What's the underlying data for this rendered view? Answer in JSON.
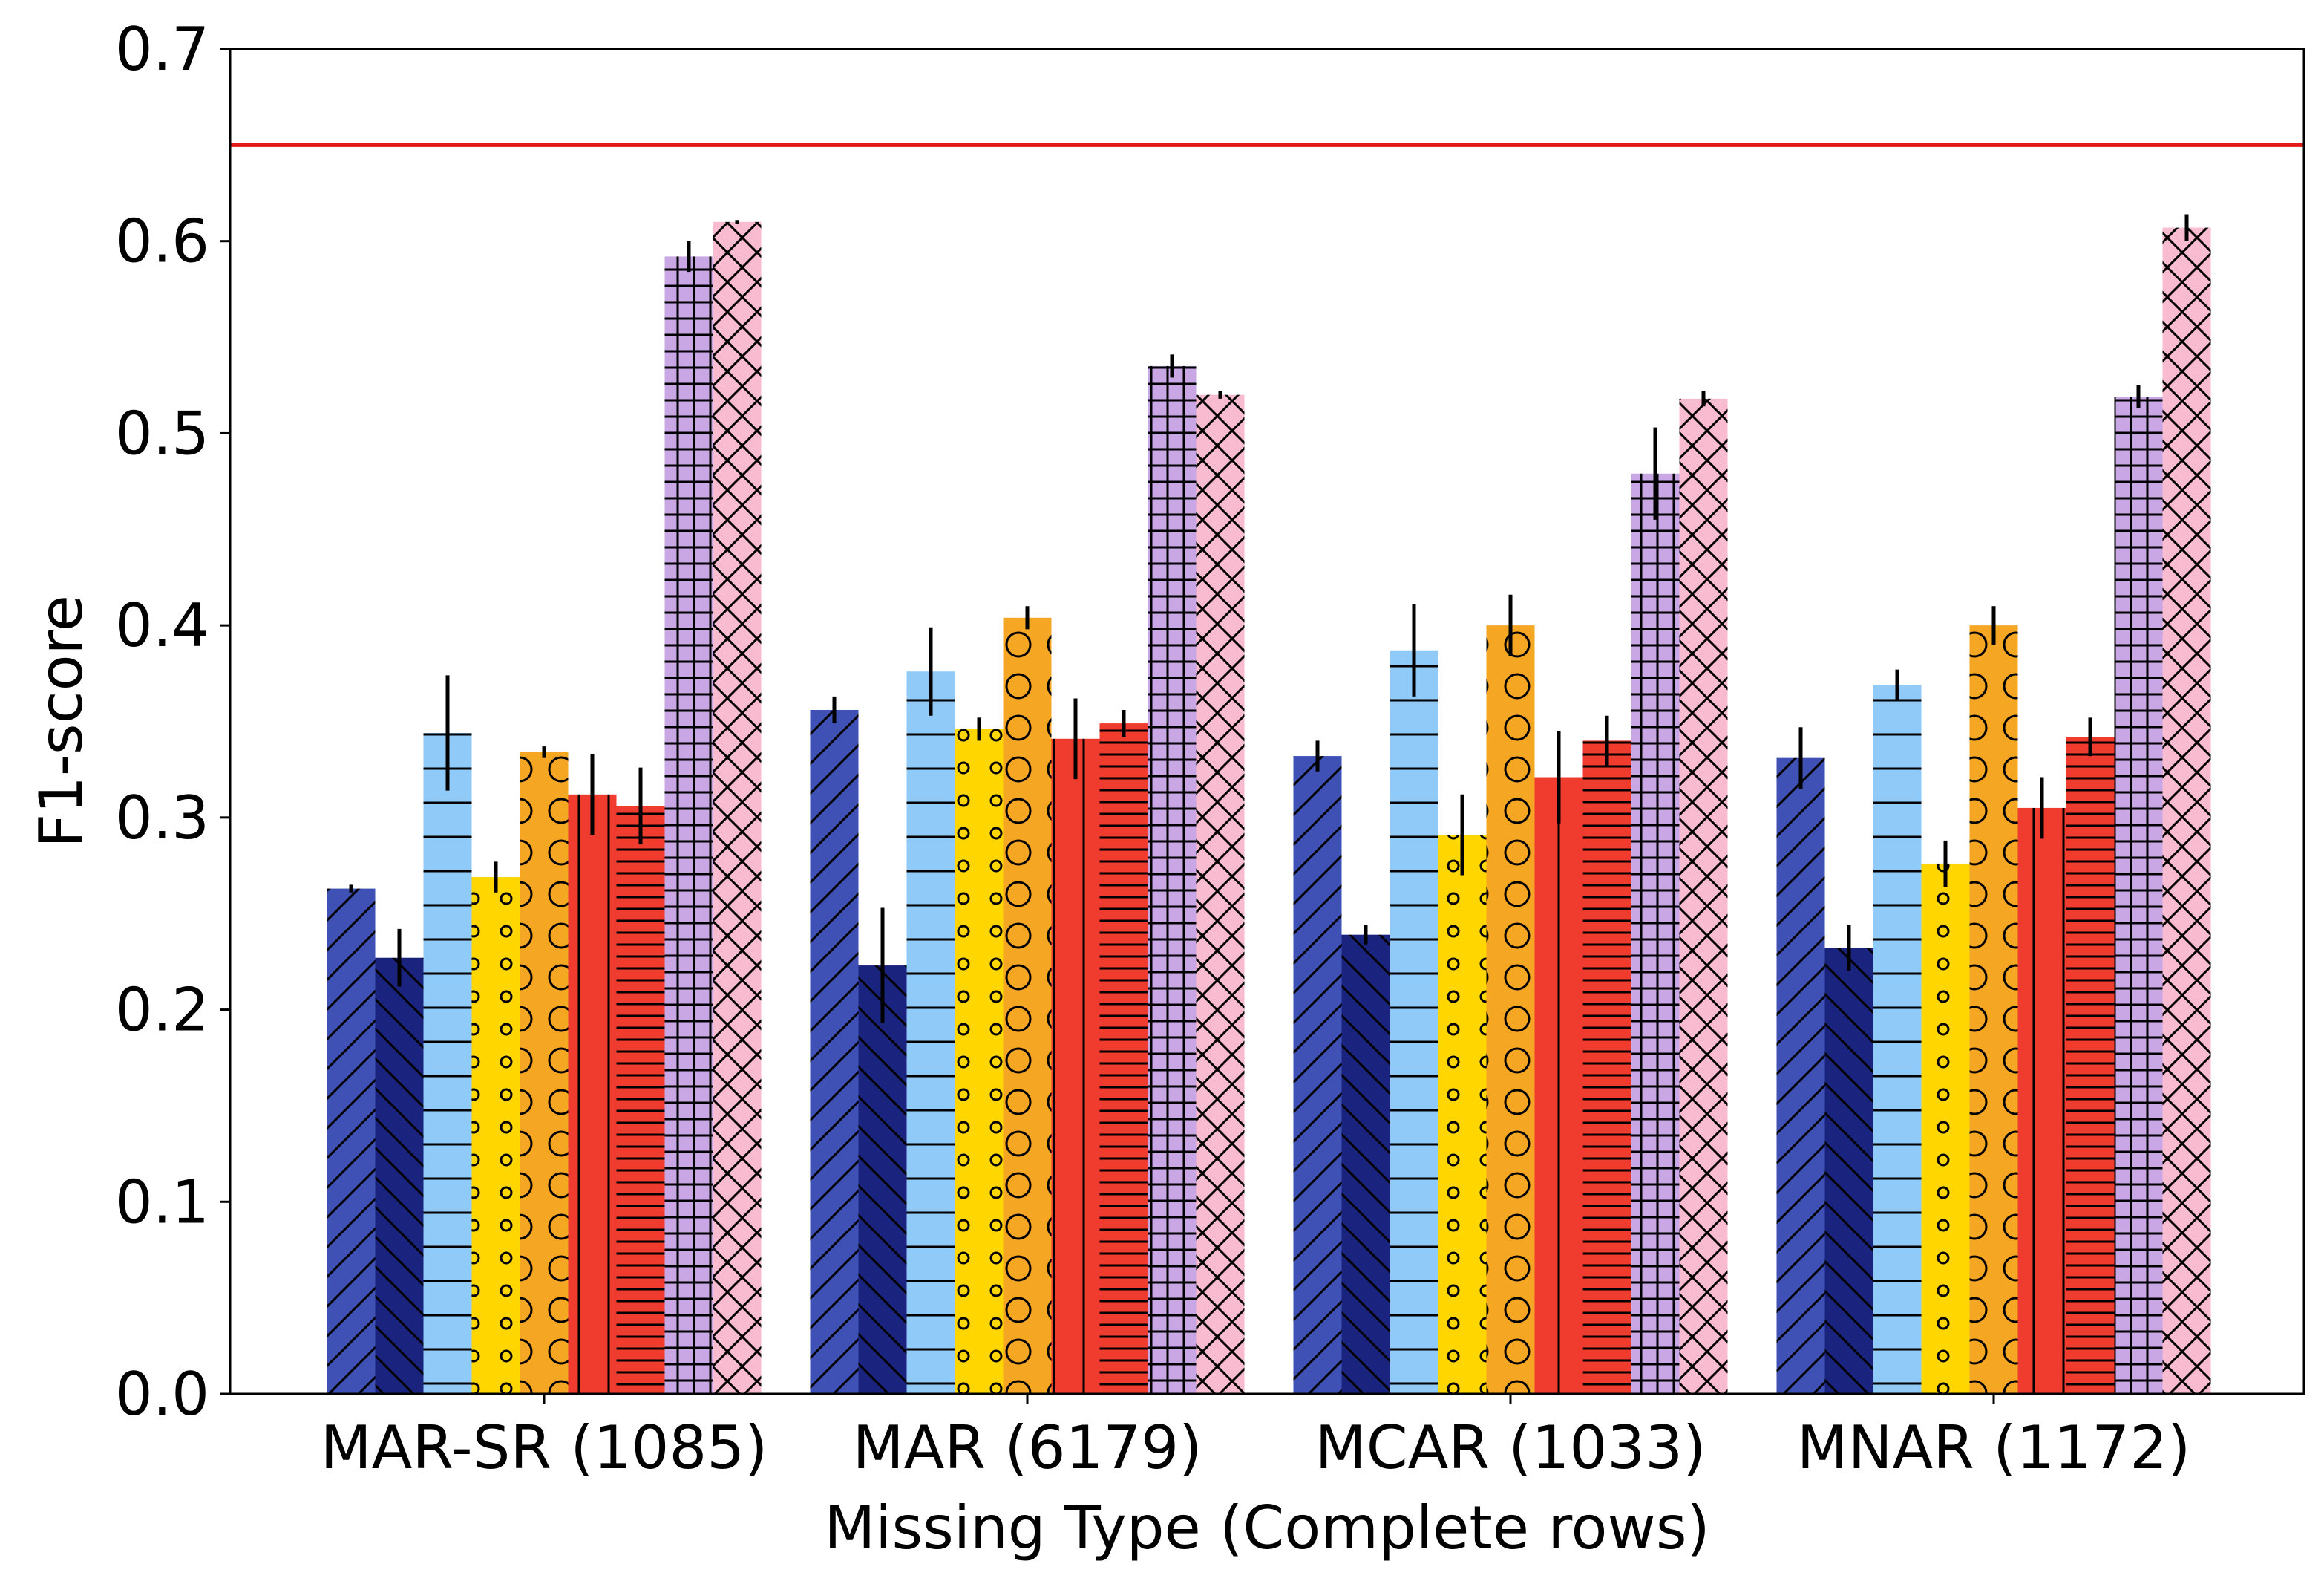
{
  "chart_data": {
    "type": "bar",
    "xlabel": "Missing Type (Complete rows)",
    "ylabel": "F1-score",
    "ylim": [
      0.0,
      0.7
    ],
    "yticks": [
      "0.0",
      "0.1",
      "0.2",
      "0.3",
      "0.4",
      "0.5",
      "0.6",
      "0.7"
    ],
    "categories": [
      "MAR-SR (1085)",
      "MAR (6179)",
      "MCAR (1033)",
      "MNAR (1172)"
    ],
    "reference_line": {
      "value": 0.65,
      "color": "#e31a1c"
    },
    "grid": false,
    "legend": "none",
    "series": [
      {
        "color": "#3f51b5",
        "hatch": "slash",
        "values": [
          0.263,
          0.356,
          0.332,
          0.331
        ],
        "errors": [
          0.002,
          0.007,
          0.008,
          0.016
        ]
      },
      {
        "color": "#1a237e",
        "hatch": "backslash",
        "values": [
          0.227,
          0.223,
          0.239,
          0.232
        ],
        "errors": [
          0.015,
          0.03,
          0.005,
          0.012
        ]
      },
      {
        "color": "#90caf9",
        "hatch": "hline",
        "values": [
          0.344,
          0.376,
          0.387,
          0.369
        ],
        "errors": [
          0.03,
          0.023,
          0.024,
          0.008
        ]
      },
      {
        "color": "#ffd600",
        "hatch": "smallcircle",
        "values": [
          0.269,
          0.346,
          0.291,
          0.276
        ],
        "errors": [
          0.008,
          0.006,
          0.021,
          0.012
        ]
      },
      {
        "color": "#f5a623",
        "hatch": "bigcircle",
        "values": [
          0.334,
          0.404,
          0.4,
          0.4
        ],
        "errors": [
          0.003,
          0.006,
          0.016,
          0.01
        ]
      },
      {
        "color": "#f03c2e",
        "hatch": "vline",
        "values": [
          0.312,
          0.341,
          0.321,
          0.305
        ],
        "errors": [
          0.021,
          0.021,
          0.024,
          0.016
        ]
      },
      {
        "color": "#f03c2e",
        "hatch": "densehline",
        "values": [
          0.306,
          0.349,
          0.34,
          0.342
        ],
        "errors": [
          0.02,
          0.007,
          0.013,
          0.01
        ]
      },
      {
        "color": "#c9a6e4",
        "hatch": "grid",
        "values": [
          0.592,
          0.535,
          0.479,
          0.519
        ],
        "errors": [
          0.008,
          0.006,
          0.024,
          0.006
        ]
      },
      {
        "color": "#f8bbd0",
        "hatch": "xhatch",
        "values": [
          0.61,
          0.52,
          0.518,
          0.607
        ],
        "errors": [
          0.001,
          0.002,
          0.004,
          0.007
        ]
      }
    ]
  }
}
